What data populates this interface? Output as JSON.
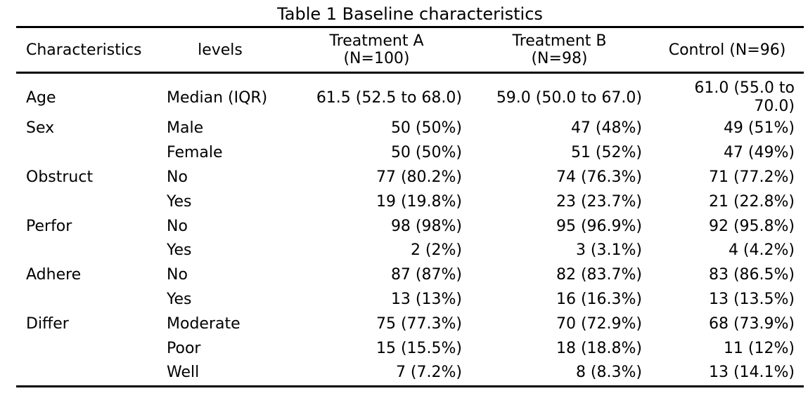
{
  "caption": "Table 1 Baseline characteristics",
  "columns": {
    "characteristics": "Characteristics",
    "levels": "levels",
    "treatment_a": [
      "Treatment A",
      "(N=100)"
    ],
    "treatment_b": [
      "Treatment B",
      "(N=98)"
    ],
    "control": "Control (N=96)"
  },
  "rows": [
    {
      "characteristic": "Age",
      "level": "Median (IQR)",
      "treatment_a": "61.5 (52.5 to 68.0)",
      "treatment_b": "59.0 (50.0 to 67.0)",
      "control": "61.0 (55.0 to 70.0)"
    },
    {
      "characteristic": "Sex",
      "level": "Male",
      "treatment_a": "50 (50%)",
      "treatment_b": "47 (48%)",
      "control": "49 (51%)"
    },
    {
      "characteristic": "",
      "level": "Female",
      "treatment_a": "50 (50%)",
      "treatment_b": "51 (52%)",
      "control": "47 (49%)"
    },
    {
      "characteristic": "Obstruct",
      "level": "No",
      "treatment_a": "77 (80.2%)",
      "treatment_b": "74 (76.3%)",
      "control": "71 (77.2%)"
    },
    {
      "characteristic": "",
      "level": "Yes",
      "treatment_a": "19 (19.8%)",
      "treatment_b": "23 (23.7%)",
      "control": "21 (22.8%)"
    },
    {
      "characteristic": "Perfor",
      "level": "No",
      "treatment_a": "98 (98%)",
      "treatment_b": "95 (96.9%)",
      "control": "92 (95.8%)"
    },
    {
      "characteristic": "",
      "level": "Yes",
      "treatment_a": "2 (2%)",
      "treatment_b": "3 (3.1%)",
      "control": "4 (4.2%)"
    },
    {
      "characteristic": "Adhere",
      "level": "No",
      "treatment_a": "87 (87%)",
      "treatment_b": "82 (83.7%)",
      "control": "83 (86.5%)"
    },
    {
      "characteristic": "",
      "level": "Yes",
      "treatment_a": "13 (13%)",
      "treatment_b": "16 (16.3%)",
      "control": "13 (13.5%)"
    },
    {
      "characteristic": "Differ",
      "level": "Moderate",
      "treatment_a": "75 (77.3%)",
      "treatment_b": "70 (72.9%)",
      "control": "68 (73.9%)"
    },
    {
      "characteristic": "",
      "level": "Poor",
      "treatment_a": "15 (15.5%)",
      "treatment_b": "18 (18.8%)",
      "control": "11 (12%)"
    },
    {
      "characteristic": "",
      "level": "Well",
      "treatment_a": "7 (7.2%)",
      "treatment_b": "8 (8.3%)",
      "control": "13 (14.1%)"
    }
  ]
}
